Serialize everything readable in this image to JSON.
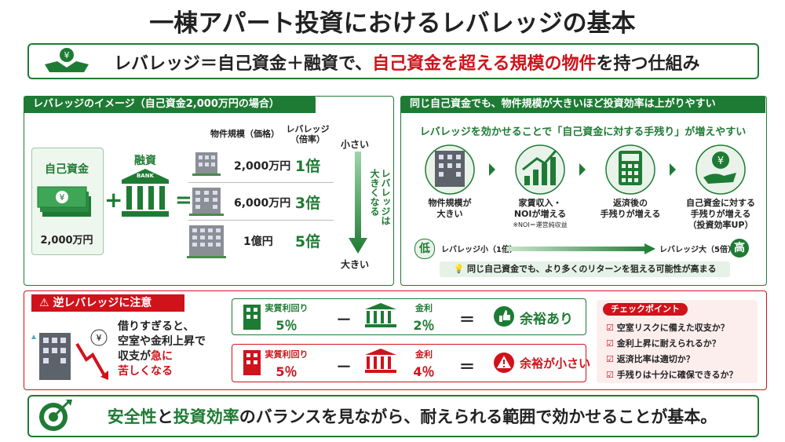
{
  "title": "一棟アパート投資におけるレバレッジの基本",
  "banner": {
    "text_before": "レバレッジ＝自己資金＋融資で、",
    "highlight": "自己資金を超える規模の物件",
    "text_after": "を持つ仕組み"
  },
  "left_panel": {
    "title": "レバレッジのイメージ（自己資金2,000万円の場合）",
    "own_funds_label": "自己資金",
    "own_funds_amount": "2,000万円",
    "plus": "+",
    "loan_label": "融資",
    "bank_text": "BANK",
    "equals": "=",
    "price_header": "物件規模（価格）",
    "ratio_header": [
      "レバレッジ",
      "（倍率）"
    ],
    "rows": [
      {
        "price": "2,000万円",
        "ratio": "1倍"
      },
      {
        "price": "6,000万円",
        "ratio": "3倍"
      },
      {
        "price": "1億円",
        "ratio": "5倍"
      }
    ],
    "arrow_top": "小さい",
    "arrow_label": [
      "レバレッジは",
      "大きくなる"
    ],
    "arrow_bottom": "大きい"
  },
  "right_panel": {
    "title": "同じ自己資金でも、物件規模が大きいほど投資効率は上がりやすい",
    "subtitle": "レバレッジを効かせることで「自己資金に対する手残り」が増えやすい",
    "steps": [
      {
        "label": [
          "物件規模が",
          "大きい"
        ]
      },
      {
        "label": [
          "家賃収入・",
          "NOIが増える"
        ],
        "note": "※NOI＝運営純収益"
      },
      {
        "label": [
          "返済後の",
          "手残りが増える"
        ]
      },
      {
        "label": [
          "自己資金に対する",
          "手残りが増える",
          "（投資効率UP）"
        ]
      }
    ],
    "low": "低",
    "low_label": "レバレッジ小（1倍）",
    "high_label": "レバレッジ大（5倍）",
    "high": "高",
    "tip": "同じ自己資金でも、より多くのリターンを狙える可能性が高まる"
  },
  "warning": {
    "title": "逆レバレッジに注意",
    "lines": [
      "借りすぎると、",
      "空室や金利上昇で",
      "収支が"
    ],
    "red_inline": "急に",
    "red_last": "苦しくなる"
  },
  "comparisons": {
    "minus": "－",
    "equals": "＝",
    "rows": [
      {
        "yield_label": "実質利回り",
        "yield": "5％",
        "rate_label": "金利",
        "rate": "2％",
        "result": "余裕あり"
      },
      {
        "yield_label": "実質利回り",
        "yield": "5％",
        "rate_label": "金利",
        "rate": "4％",
        "result": "余裕が小さい"
      }
    ]
  },
  "checkpoints": {
    "title": "チェックポイント",
    "items": [
      "空室リスクに備えた収支か？",
      "金利上昇に耐えられるか？",
      "返済比率は適切か？",
      "手残りは十分に確保できるか？"
    ]
  },
  "footer": {
    "parts": [
      "安全性",
      "と",
      "投資効率",
      "のバランスを見ながら、耐えられる範囲で効かせることが基本。"
    ]
  }
}
